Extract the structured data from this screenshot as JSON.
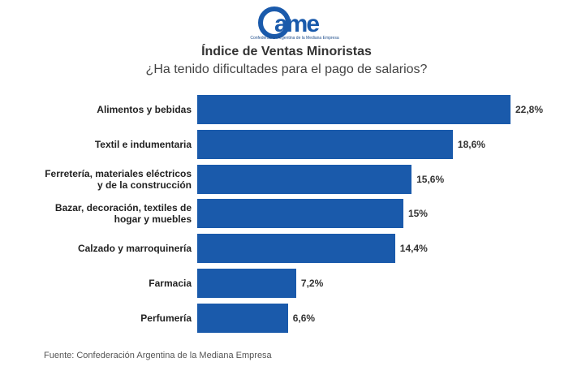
{
  "logo": {
    "text": "Came",
    "tagline": "Confederación Argentina de la Mediana Empresa"
  },
  "chart_data": {
    "type": "bar",
    "orientation": "horizontal",
    "title": "Índice de Ventas Minoristas",
    "subtitle": "¿Ha tenido dificultades para el pago de salarios?",
    "categories": [
      "Alimentos y bebidas",
      "Textil e indumentaria",
      "Ferretería, materiales eléctricos\ny de la construcción",
      "Bazar, decoración, textiles de\nhogar y muebles",
      "Calzado y marroquinería",
      "Farmacia",
      "Perfumería"
    ],
    "values": [
      22.8,
      18.6,
      15.6,
      15,
      14.4,
      7.2,
      6.6
    ],
    "value_labels": [
      "22,8%",
      "18,6%",
      "15,6%",
      "15%",
      "14,4%",
      "7,2%",
      "6,6%"
    ],
    "xlim": [
      0,
      22.8
    ],
    "grid": false,
    "bar_color": "#1a5aab"
  },
  "source": "Fuente: Confederación Argentina de la Mediana Empresa"
}
